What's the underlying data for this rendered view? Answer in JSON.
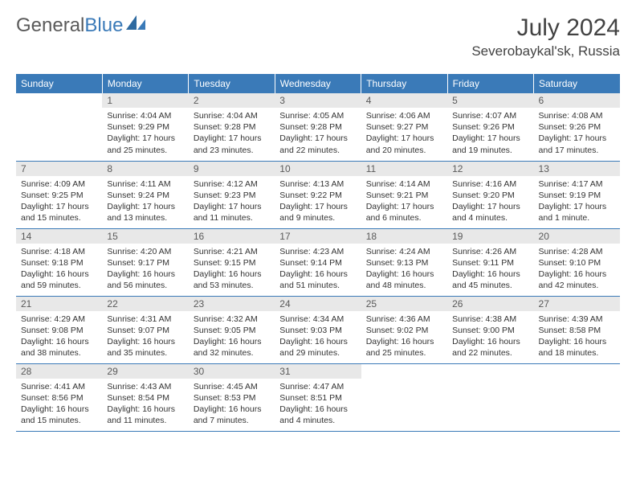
{
  "colors": {
    "header_bg": "#3a7ab8",
    "header_text": "#ffffff",
    "daynum_bg": "#e8e8e8",
    "daynum_text": "#5a5a5a",
    "border": "#3a7ab8",
    "body_text": "#333333",
    "title_text": "#424242",
    "logo_gray": "#5a5a5a",
    "logo_blue": "#3a7ab8",
    "background": "#ffffff"
  },
  "logo": {
    "part1": "General",
    "part2": "Blue"
  },
  "title": "July 2024",
  "location": "Severobaykal'sk, Russia",
  "day_headers": [
    "Sunday",
    "Monday",
    "Tuesday",
    "Wednesday",
    "Thursday",
    "Friday",
    "Saturday"
  ],
  "layout": {
    "weeks": 5,
    "first_day_column": 1,
    "days_in_month": 31
  },
  "days": {
    "1": {
      "sunrise": "Sunrise: 4:04 AM",
      "sunset": "Sunset: 9:29 PM",
      "daylight": "Daylight: 17 hours and 25 minutes."
    },
    "2": {
      "sunrise": "Sunrise: 4:04 AM",
      "sunset": "Sunset: 9:28 PM",
      "daylight": "Daylight: 17 hours and 23 minutes."
    },
    "3": {
      "sunrise": "Sunrise: 4:05 AM",
      "sunset": "Sunset: 9:28 PM",
      "daylight": "Daylight: 17 hours and 22 minutes."
    },
    "4": {
      "sunrise": "Sunrise: 4:06 AM",
      "sunset": "Sunset: 9:27 PM",
      "daylight": "Daylight: 17 hours and 20 minutes."
    },
    "5": {
      "sunrise": "Sunrise: 4:07 AM",
      "sunset": "Sunset: 9:26 PM",
      "daylight": "Daylight: 17 hours and 19 minutes."
    },
    "6": {
      "sunrise": "Sunrise: 4:08 AM",
      "sunset": "Sunset: 9:26 PM",
      "daylight": "Daylight: 17 hours and 17 minutes."
    },
    "7": {
      "sunrise": "Sunrise: 4:09 AM",
      "sunset": "Sunset: 9:25 PM",
      "daylight": "Daylight: 17 hours and 15 minutes."
    },
    "8": {
      "sunrise": "Sunrise: 4:11 AM",
      "sunset": "Sunset: 9:24 PM",
      "daylight": "Daylight: 17 hours and 13 minutes."
    },
    "9": {
      "sunrise": "Sunrise: 4:12 AM",
      "sunset": "Sunset: 9:23 PM",
      "daylight": "Daylight: 17 hours and 11 minutes."
    },
    "10": {
      "sunrise": "Sunrise: 4:13 AM",
      "sunset": "Sunset: 9:22 PM",
      "daylight": "Daylight: 17 hours and 9 minutes."
    },
    "11": {
      "sunrise": "Sunrise: 4:14 AM",
      "sunset": "Sunset: 9:21 PM",
      "daylight": "Daylight: 17 hours and 6 minutes."
    },
    "12": {
      "sunrise": "Sunrise: 4:16 AM",
      "sunset": "Sunset: 9:20 PM",
      "daylight": "Daylight: 17 hours and 4 minutes."
    },
    "13": {
      "sunrise": "Sunrise: 4:17 AM",
      "sunset": "Sunset: 9:19 PM",
      "daylight": "Daylight: 17 hours and 1 minute."
    },
    "14": {
      "sunrise": "Sunrise: 4:18 AM",
      "sunset": "Sunset: 9:18 PM",
      "daylight": "Daylight: 16 hours and 59 minutes."
    },
    "15": {
      "sunrise": "Sunrise: 4:20 AM",
      "sunset": "Sunset: 9:17 PM",
      "daylight": "Daylight: 16 hours and 56 minutes."
    },
    "16": {
      "sunrise": "Sunrise: 4:21 AM",
      "sunset": "Sunset: 9:15 PM",
      "daylight": "Daylight: 16 hours and 53 minutes."
    },
    "17": {
      "sunrise": "Sunrise: 4:23 AM",
      "sunset": "Sunset: 9:14 PM",
      "daylight": "Daylight: 16 hours and 51 minutes."
    },
    "18": {
      "sunrise": "Sunrise: 4:24 AM",
      "sunset": "Sunset: 9:13 PM",
      "daylight": "Daylight: 16 hours and 48 minutes."
    },
    "19": {
      "sunrise": "Sunrise: 4:26 AM",
      "sunset": "Sunset: 9:11 PM",
      "daylight": "Daylight: 16 hours and 45 minutes."
    },
    "20": {
      "sunrise": "Sunrise: 4:28 AM",
      "sunset": "Sunset: 9:10 PM",
      "daylight": "Daylight: 16 hours and 42 minutes."
    },
    "21": {
      "sunrise": "Sunrise: 4:29 AM",
      "sunset": "Sunset: 9:08 PM",
      "daylight": "Daylight: 16 hours and 38 minutes."
    },
    "22": {
      "sunrise": "Sunrise: 4:31 AM",
      "sunset": "Sunset: 9:07 PM",
      "daylight": "Daylight: 16 hours and 35 minutes."
    },
    "23": {
      "sunrise": "Sunrise: 4:32 AM",
      "sunset": "Sunset: 9:05 PM",
      "daylight": "Daylight: 16 hours and 32 minutes."
    },
    "24": {
      "sunrise": "Sunrise: 4:34 AM",
      "sunset": "Sunset: 9:03 PM",
      "daylight": "Daylight: 16 hours and 29 minutes."
    },
    "25": {
      "sunrise": "Sunrise: 4:36 AM",
      "sunset": "Sunset: 9:02 PM",
      "daylight": "Daylight: 16 hours and 25 minutes."
    },
    "26": {
      "sunrise": "Sunrise: 4:38 AM",
      "sunset": "Sunset: 9:00 PM",
      "daylight": "Daylight: 16 hours and 22 minutes."
    },
    "27": {
      "sunrise": "Sunrise: 4:39 AM",
      "sunset": "Sunset: 8:58 PM",
      "daylight": "Daylight: 16 hours and 18 minutes."
    },
    "28": {
      "sunrise": "Sunrise: 4:41 AM",
      "sunset": "Sunset: 8:56 PM",
      "daylight": "Daylight: 16 hours and 15 minutes."
    },
    "29": {
      "sunrise": "Sunrise: 4:43 AM",
      "sunset": "Sunset: 8:54 PM",
      "daylight": "Daylight: 16 hours and 11 minutes."
    },
    "30": {
      "sunrise": "Sunrise: 4:45 AM",
      "sunset": "Sunset: 8:53 PM",
      "daylight": "Daylight: 16 hours and 7 minutes."
    },
    "31": {
      "sunrise": "Sunrise: 4:47 AM",
      "sunset": "Sunset: 8:51 PM",
      "daylight": "Daylight: 16 hours and 4 minutes."
    }
  }
}
